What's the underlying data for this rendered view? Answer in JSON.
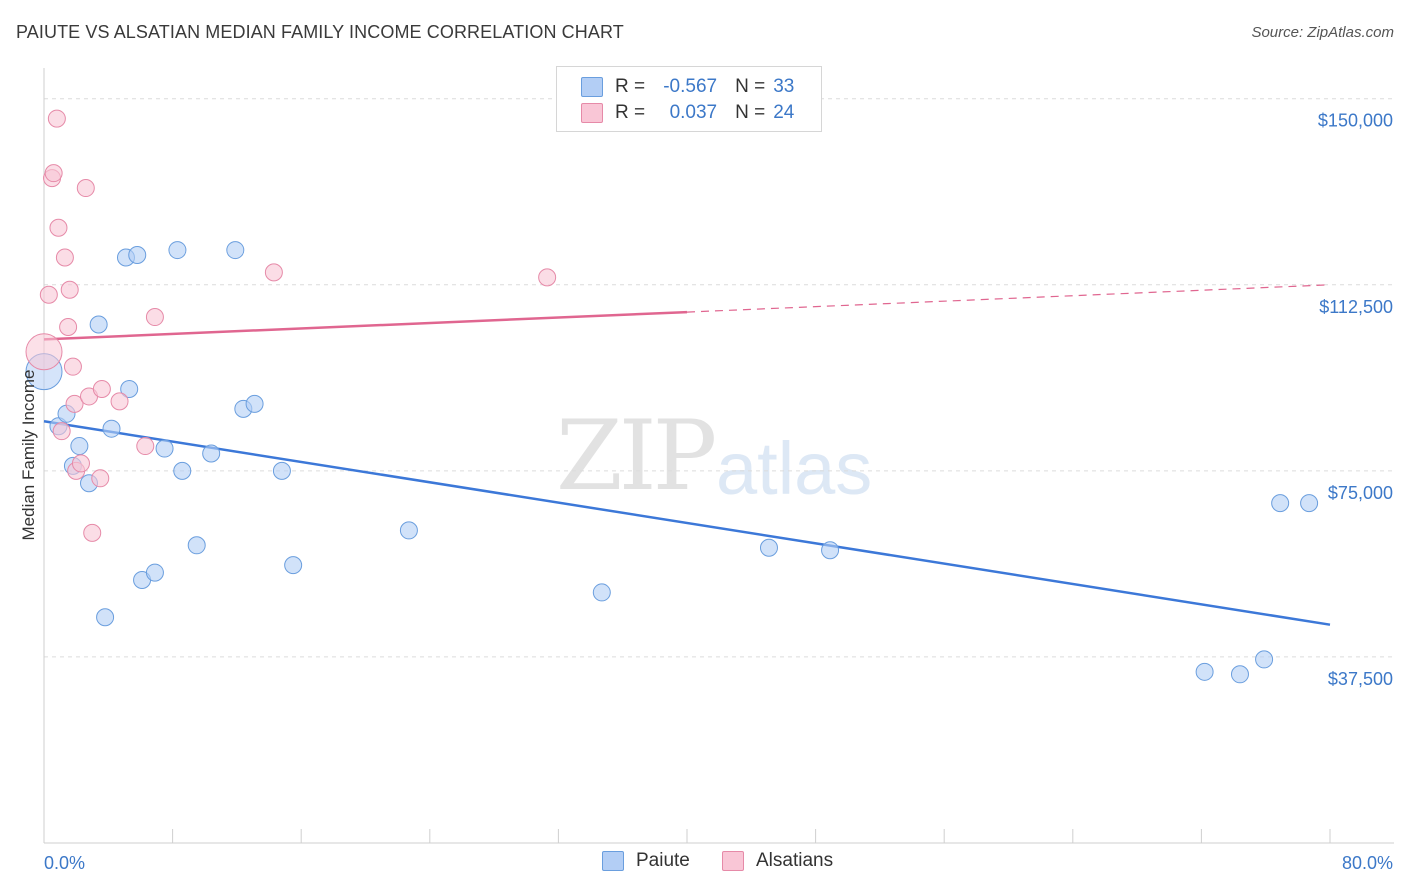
{
  "title": "PAIUTE VS ALSATIAN MEDIAN FAMILY INCOME CORRELATION CHART",
  "source": "Source: ZipAtlas.com",
  "watermark": {
    "zip": "ZIP",
    "atlas": "atlas"
  },
  "legend": {
    "rows": [
      {
        "r_label": "R =",
        "r_value": "-0.567",
        "n_label": "N =",
        "n_value": "33",
        "color": "#b3cef5",
        "border": "#6a9ede"
      },
      {
        "r_label": "R =",
        "r_value": "0.037",
        "n_label": "N =",
        "n_value": "24",
        "color": "#f9c6d6",
        "border": "#e68aa8"
      }
    ]
  },
  "bottom_legend": [
    {
      "label": "Paiute",
      "color": "#b3cef5",
      "border": "#6a9ede"
    },
    {
      "label": "Alsatians",
      "color": "#f9c6d6",
      "border": "#e68aa8"
    }
  ],
  "chart_data": {
    "type": "scatter",
    "title": "PAIUTE VS ALSATIAN MEDIAN FAMILY INCOME CORRELATION CHART",
    "xlabel": "",
    "ylabel": "Median Family Income",
    "xlim": [
      0,
      80
    ],
    "ylim": [
      0,
      157000
    ],
    "x_tick_labels": {
      "left": "0.0%",
      "right": "80.0%"
    },
    "y_ticks": [
      {
        "value": 150000,
        "label": "$150,000"
      },
      {
        "value": 112500,
        "label": "$112,500"
      },
      {
        "value": 75000,
        "label": "$75,000"
      },
      {
        "value": 37500,
        "label": "$37,500"
      }
    ],
    "series": [
      {
        "name": "Paiute",
        "color": "#3c78d8",
        "fill": "#b3cef5",
        "stroke": "#6a9ede",
        "trend": {
          "x0": 0,
          "y0": 85000,
          "x1": 80,
          "y1": 44000,
          "dashed_from": null
        },
        "points": [
          {
            "x": 0.0,
            "y": 95000,
            "big": true
          },
          {
            "x": 0.9,
            "y": 84000
          },
          {
            "x": 1.4,
            "y": 86500
          },
          {
            "x": 1.8,
            "y": 76000
          },
          {
            "x": 2.2,
            "y": 80000
          },
          {
            "x": 2.8,
            "y": 72500
          },
          {
            "x": 3.4,
            "y": 104500
          },
          {
            "x": 3.8,
            "y": 45500
          },
          {
            "x": 4.2,
            "y": 83500
          },
          {
            "x": 5.1,
            "y": 118000
          },
          {
            "x": 5.3,
            "y": 91500
          },
          {
            "x": 5.8,
            "y": 118500
          },
          {
            "x": 6.1,
            "y": 53000
          },
          {
            "x": 6.9,
            "y": 54500
          },
          {
            "x": 7.5,
            "y": 79500
          },
          {
            "x": 8.3,
            "y": 119500
          },
          {
            "x": 8.6,
            "y": 75000
          },
          {
            "x": 9.5,
            "y": 60000
          },
          {
            "x": 10.4,
            "y": 78500
          },
          {
            "x": 11.9,
            "y": 119500
          },
          {
            "x": 12.4,
            "y": 87500
          },
          {
            "x": 13.1,
            "y": 88500
          },
          {
            "x": 14.8,
            "y": 75000
          },
          {
            "x": 15.5,
            "y": 56000
          },
          {
            "x": 22.7,
            "y": 63000
          },
          {
            "x": 34.7,
            "y": 50500
          },
          {
            "x": 45.1,
            "y": 59500
          },
          {
            "x": 48.9,
            "y": 59000
          },
          {
            "x": 72.2,
            "y": 34500
          },
          {
            "x": 74.4,
            "y": 34000
          },
          {
            "x": 75.9,
            "y": 37000
          },
          {
            "x": 76.9,
            "y": 68500
          },
          {
            "x": 78.7,
            "y": 68500
          }
        ]
      },
      {
        "name": "Alsatians",
        "color": "#e06690",
        "fill": "#f9c6d6",
        "stroke": "#e68aa8",
        "trend": {
          "x0": 0,
          "y0": 101500,
          "x1": 80,
          "y1": 112500,
          "solid_until": 40
        },
        "points": [
          {
            "x": 0.0,
            "y": 99000,
            "big": true
          },
          {
            "x": 0.3,
            "y": 110500
          },
          {
            "x": 0.5,
            "y": 134000
          },
          {
            "x": 0.6,
            "y": 135000
          },
          {
            "x": 0.8,
            "y": 146000
          },
          {
            "x": 0.9,
            "y": 124000
          },
          {
            "x": 1.1,
            "y": 83000
          },
          {
            "x": 1.3,
            "y": 118000
          },
          {
            "x": 1.5,
            "y": 104000
          },
          {
            "x": 1.6,
            "y": 111500
          },
          {
            "x": 1.8,
            "y": 96000
          },
          {
            "x": 1.9,
            "y": 88500
          },
          {
            "x": 2.0,
            "y": 75000
          },
          {
            "x": 2.3,
            "y": 76500
          },
          {
            "x": 2.6,
            "y": 132000
          },
          {
            "x": 2.8,
            "y": 90000
          },
          {
            "x": 3.0,
            "y": 62500
          },
          {
            "x": 3.5,
            "y": 73500
          },
          {
            "x": 3.6,
            "y": 91500
          },
          {
            "x": 4.7,
            "y": 89000
          },
          {
            "x": 6.3,
            "y": 80000
          },
          {
            "x": 6.9,
            "y": 106000
          },
          {
            "x": 14.3,
            "y": 115000
          },
          {
            "x": 31.3,
            "y": 114000
          }
        ]
      }
    ]
  }
}
